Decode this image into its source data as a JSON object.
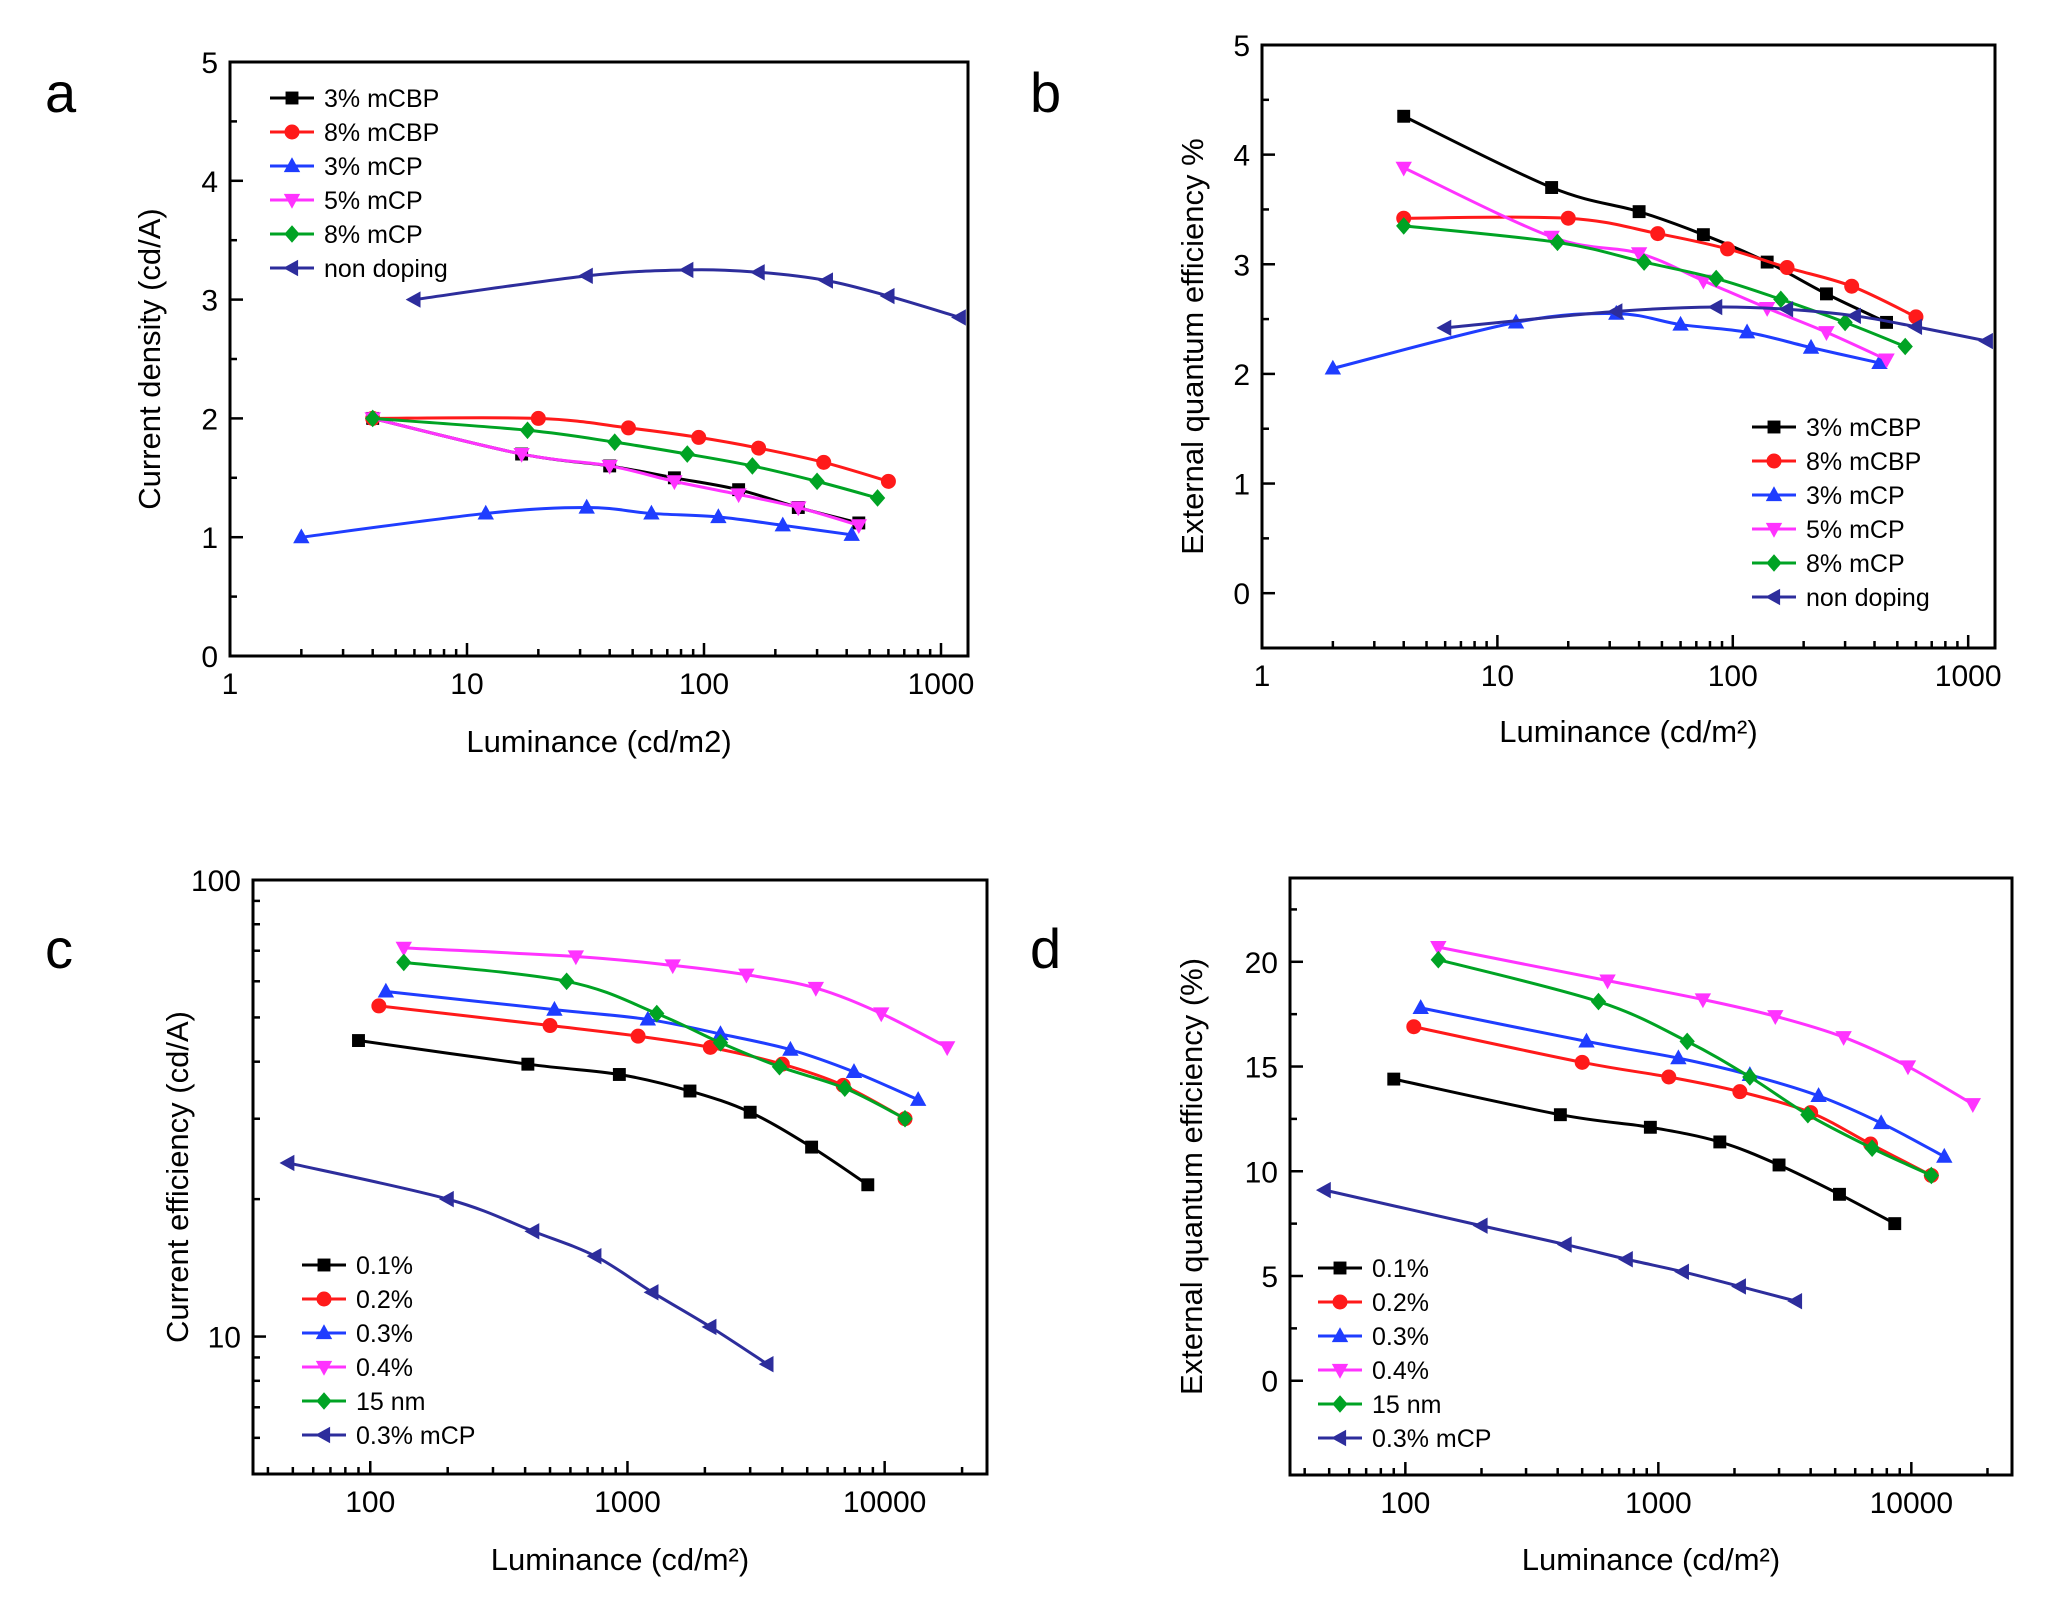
{
  "colors": {
    "black": "#000000",
    "red": "#ff1a1a",
    "blue": "#1f3dff",
    "magenta": "#ff33ff",
    "green": "#00a324",
    "navy": "#2d2d9c"
  },
  "chart_data": [
    {
      "panel": "a",
      "type": "line",
      "xscale": "log",
      "yscale": "linear",
      "xlabel": "Luminance (cd/m2)",
      "ylabel": "Current density (cd/A)",
      "xlim": [
        1,
        1300
      ],
      "ylim": [
        0,
        5
      ],
      "xticks": [
        1,
        10,
        100,
        1000
      ],
      "xtick_labels": [
        "1",
        "10",
        "100",
        "1000"
      ],
      "yticks": [
        0,
        1,
        2,
        3,
        4,
        5
      ],
      "ytick_labels": [
        "0",
        "1",
        "2",
        "3",
        "4",
        "5"
      ],
      "legend": "top-left",
      "series": [
        {
          "name": "3% mCBP",
          "color": "black",
          "marker": "square",
          "x": [
            4,
            17,
            40,
            75,
            140,
            250,
            450
          ],
          "y": [
            2.0,
            1.7,
            1.6,
            1.5,
            1.4,
            1.25,
            1.12
          ]
        },
        {
          "name": "8% mCBP",
          "color": "red",
          "marker": "circle",
          "x": [
            4,
            20,
            48,
            95,
            170,
            320,
            600
          ],
          "y": [
            2.0,
            2.0,
            1.92,
            1.84,
            1.75,
            1.63,
            1.47
          ]
        },
        {
          "name": "3% mCP",
          "color": "blue",
          "marker": "triangle-up",
          "x": [
            2,
            12,
            32,
            60,
            115,
            215,
            420
          ],
          "y": [
            1.0,
            1.2,
            1.25,
            1.2,
            1.17,
            1.1,
            1.02
          ]
        },
        {
          "name": "5% mCP",
          "color": "magenta",
          "marker": "triangle-down",
          "x": [
            4,
            17,
            40,
            75,
            140,
            250,
            450
          ],
          "y": [
            2.0,
            1.7,
            1.6,
            1.47,
            1.36,
            1.25,
            1.1
          ]
        },
        {
          "name": "8% mCP",
          "color": "green",
          "marker": "diamond",
          "x": [
            4,
            18,
            42,
            85,
            160,
            300,
            540
          ],
          "y": [
            2.0,
            1.9,
            1.8,
            1.7,
            1.6,
            1.47,
            1.33
          ]
        },
        {
          "name": "non doping",
          "color": "navy",
          "marker": "triangle-left",
          "x": [
            6,
            32,
            85,
            170,
            330,
            600,
            1200
          ],
          "y": [
            3.0,
            3.2,
            3.25,
            3.23,
            3.16,
            3.03,
            2.85
          ]
        }
      ]
    },
    {
      "panel": "b",
      "type": "line",
      "xscale": "log",
      "yscale": "linear",
      "xlabel": "Luminance (cd/m²)",
      "ylabel": "External quantum efficiency %",
      "xlim": [
        1,
        1300
      ],
      "ylim": [
        -0.5,
        5
      ],
      "xticks": [
        1,
        10,
        100,
        1000
      ],
      "xtick_labels": [
        "1",
        "10",
        "100",
        "1000"
      ],
      "yticks": [
        0,
        1,
        2,
        3,
        4,
        5
      ],
      "ytick_labels": [
        "0",
        "1",
        "2",
        "3",
        "4",
        "5"
      ],
      "legend": "bottom-right",
      "series": [
        {
          "name": "3% mCBP",
          "color": "black",
          "marker": "square",
          "x": [
            4,
            17,
            40,
            75,
            140,
            250,
            450
          ],
          "y": [
            4.35,
            3.7,
            3.48,
            3.27,
            3.02,
            2.73,
            2.47
          ]
        },
        {
          "name": "8% mCBP",
          "color": "red",
          "marker": "circle",
          "x": [
            4,
            20,
            48,
            95,
            170,
            320,
            600
          ],
          "y": [
            3.42,
            3.42,
            3.28,
            3.14,
            2.97,
            2.8,
            2.52
          ]
        },
        {
          "name": "3% mCP",
          "color": "blue",
          "marker": "triangle-up",
          "x": [
            2,
            12,
            32,
            60,
            115,
            215,
            420
          ],
          "y": [
            2.05,
            2.47,
            2.55,
            2.45,
            2.38,
            2.24,
            2.1
          ]
        },
        {
          "name": "5% mCP",
          "color": "magenta",
          "marker": "triangle-down",
          "x": [
            4,
            17,
            40,
            75,
            140,
            250,
            450
          ],
          "y": [
            3.88,
            3.25,
            3.1,
            2.85,
            2.6,
            2.38,
            2.13
          ]
        },
        {
          "name": "8% mCP",
          "color": "green",
          "marker": "diamond",
          "x": [
            4,
            18,
            42,
            85,
            160,
            300,
            540
          ],
          "y": [
            3.35,
            3.2,
            3.02,
            2.87,
            2.68,
            2.47,
            2.25
          ]
        },
        {
          "name": "non doping",
          "color": "navy",
          "marker": "triangle-left",
          "x": [
            6,
            32,
            85,
            170,
            330,
            600,
            1200
          ],
          "y": [
            2.42,
            2.57,
            2.61,
            2.59,
            2.53,
            2.43,
            2.3
          ]
        }
      ]
    },
    {
      "panel": "c",
      "type": "line",
      "xscale": "log",
      "yscale": "log",
      "xlabel": "Luminance (cd/m²)",
      "ylabel": "Current efficiency (cd/A)",
      "xlim": [
        35,
        25000
      ],
      "ylim": [
        5,
        100
      ],
      "xticks": [
        100,
        1000,
        10000
      ],
      "xtick_labels": [
        "100",
        "1000",
        "10000"
      ],
      "yticks": [
        10,
        100
      ],
      "ytick_labels": [
        "10",
        "100"
      ],
      "legend": "bottom-left",
      "series": [
        {
          "name": "0.1%",
          "color": "black",
          "marker": "square",
          "x": [
            90,
            410,
            930,
            1750,
            3000,
            5200,
            8600
          ],
          "y": [
            44.5,
            39.5,
            37.5,
            34.5,
            31,
            26,
            21.5
          ]
        },
        {
          "name": "0.2%",
          "color": "red",
          "marker": "circle",
          "x": [
            108,
            500,
            1100,
            2100,
            4000,
            6900,
            12000
          ],
          "y": [
            53,
            48,
            45.5,
            43,
            39.5,
            35.5,
            30
          ]
        },
        {
          "name": "0.3%",
          "color": "blue",
          "marker": "triangle-up",
          "x": [
            115,
            520,
            1200,
            2300,
            4300,
            7600,
            13500
          ],
          "y": [
            57,
            52,
            49.5,
            46,
            42.5,
            38,
            33
          ]
        },
        {
          "name": "0.4%",
          "color": "magenta",
          "marker": "triangle-down",
          "x": [
            135,
            630,
            1500,
            2900,
            5400,
            9700,
            17500
          ],
          "y": [
            71,
            68,
            65,
            62,
            58,
            51,
            43
          ]
        },
        {
          "name": "15 nm",
          "color": "green",
          "marker": "diamond",
          "x": [
            135,
            580,
            1300,
            2300,
            3900,
            7000,
            12000
          ],
          "y": [
            66,
            60,
            51,
            44,
            39,
            35,
            30
          ]
        },
        {
          "name": "0.3% mCP",
          "color": "navy",
          "marker": "triangle-left",
          "x": [
            48,
            200,
            430,
            750,
            1250,
            2100,
            3500
          ],
          "y": [
            24,
            20,
            17,
            15,
            12.5,
            10.5,
            8.7
          ]
        }
      ]
    },
    {
      "panel": "d",
      "type": "line",
      "xscale": "log",
      "yscale": "linear",
      "xlabel": "Luminance (cd/m²)",
      "ylabel": "External quantum efficiency (%)",
      "xlim": [
        35,
        25000
      ],
      "ylim": [
        -4.5,
        24
      ],
      "xticks": [
        100,
        1000,
        10000
      ],
      "xtick_labels": [
        "100",
        "1000",
        "10000"
      ],
      "yticks": [
        0,
        5,
        10,
        15,
        20
      ],
      "ytick_labels": [
        "0",
        "5",
        "10",
        "15",
        "20"
      ],
      "legend": "bottom-left",
      "series": [
        {
          "name": "0.1%",
          "color": "black",
          "marker": "square",
          "x": [
            90,
            410,
            930,
            1750,
            3000,
            5200,
            8600
          ],
          "y": [
            14.4,
            12.7,
            12.1,
            11.4,
            10.3,
            8.9,
            7.5
          ]
        },
        {
          "name": "0.2%",
          "color": "red",
          "marker": "circle",
          "x": [
            108,
            500,
            1100,
            2100,
            4000,
            6900,
            12000
          ],
          "y": [
            16.9,
            15.2,
            14.5,
            13.8,
            12.8,
            11.3,
            9.8
          ]
        },
        {
          "name": "0.3%",
          "color": "blue",
          "marker": "triangle-up",
          "x": [
            115,
            520,
            1200,
            2300,
            4300,
            7600,
            13500
          ],
          "y": [
            17.8,
            16.2,
            15.4,
            14.6,
            13.6,
            12.3,
            10.7
          ]
        },
        {
          "name": "0.4%",
          "color": "magenta",
          "marker": "triangle-down",
          "x": [
            135,
            630,
            1500,
            2900,
            5400,
            9700,
            17500
          ],
          "y": [
            20.7,
            19.1,
            18.2,
            17.4,
            16.4,
            15.0,
            13.2
          ]
        },
        {
          "name": "15 nm",
          "color": "green",
          "marker": "diamond",
          "x": [
            135,
            580,
            1300,
            2300,
            3900,
            7000,
            12000
          ],
          "y": [
            20.1,
            18.1,
            16.2,
            14.5,
            12.7,
            11.1,
            9.8
          ]
        },
        {
          "name": "0.3% mCP",
          "color": "navy",
          "marker": "triangle-left",
          "x": [
            48,
            200,
            430,
            750,
            1250,
            2100,
            3500
          ],
          "y": [
            9.1,
            7.4,
            6.5,
            5.8,
            5.2,
            4.5,
            3.8
          ]
        }
      ]
    }
  ]
}
